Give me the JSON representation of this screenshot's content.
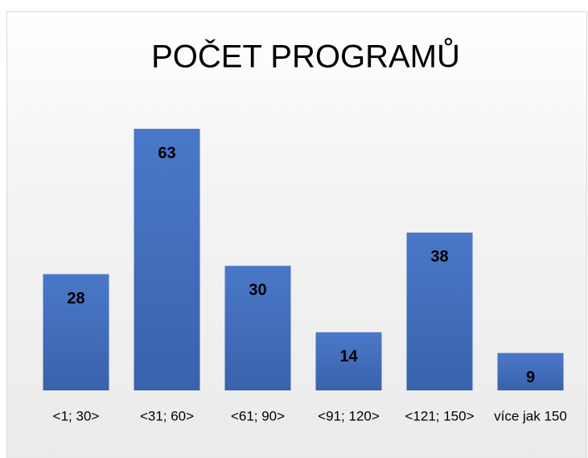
{
  "chart_data": {
    "type": "bar",
    "title": "POČET PROGRAMŮ",
    "categories": [
      "<1; 30>",
      "<31; 60>",
      "<61; 90>",
      "<91; 120>",
      "<121; 150>",
      "více jak 150"
    ],
    "values": [
      28,
      63,
      30,
      14,
      38,
      9
    ],
    "color": "#4472c4"
  }
}
